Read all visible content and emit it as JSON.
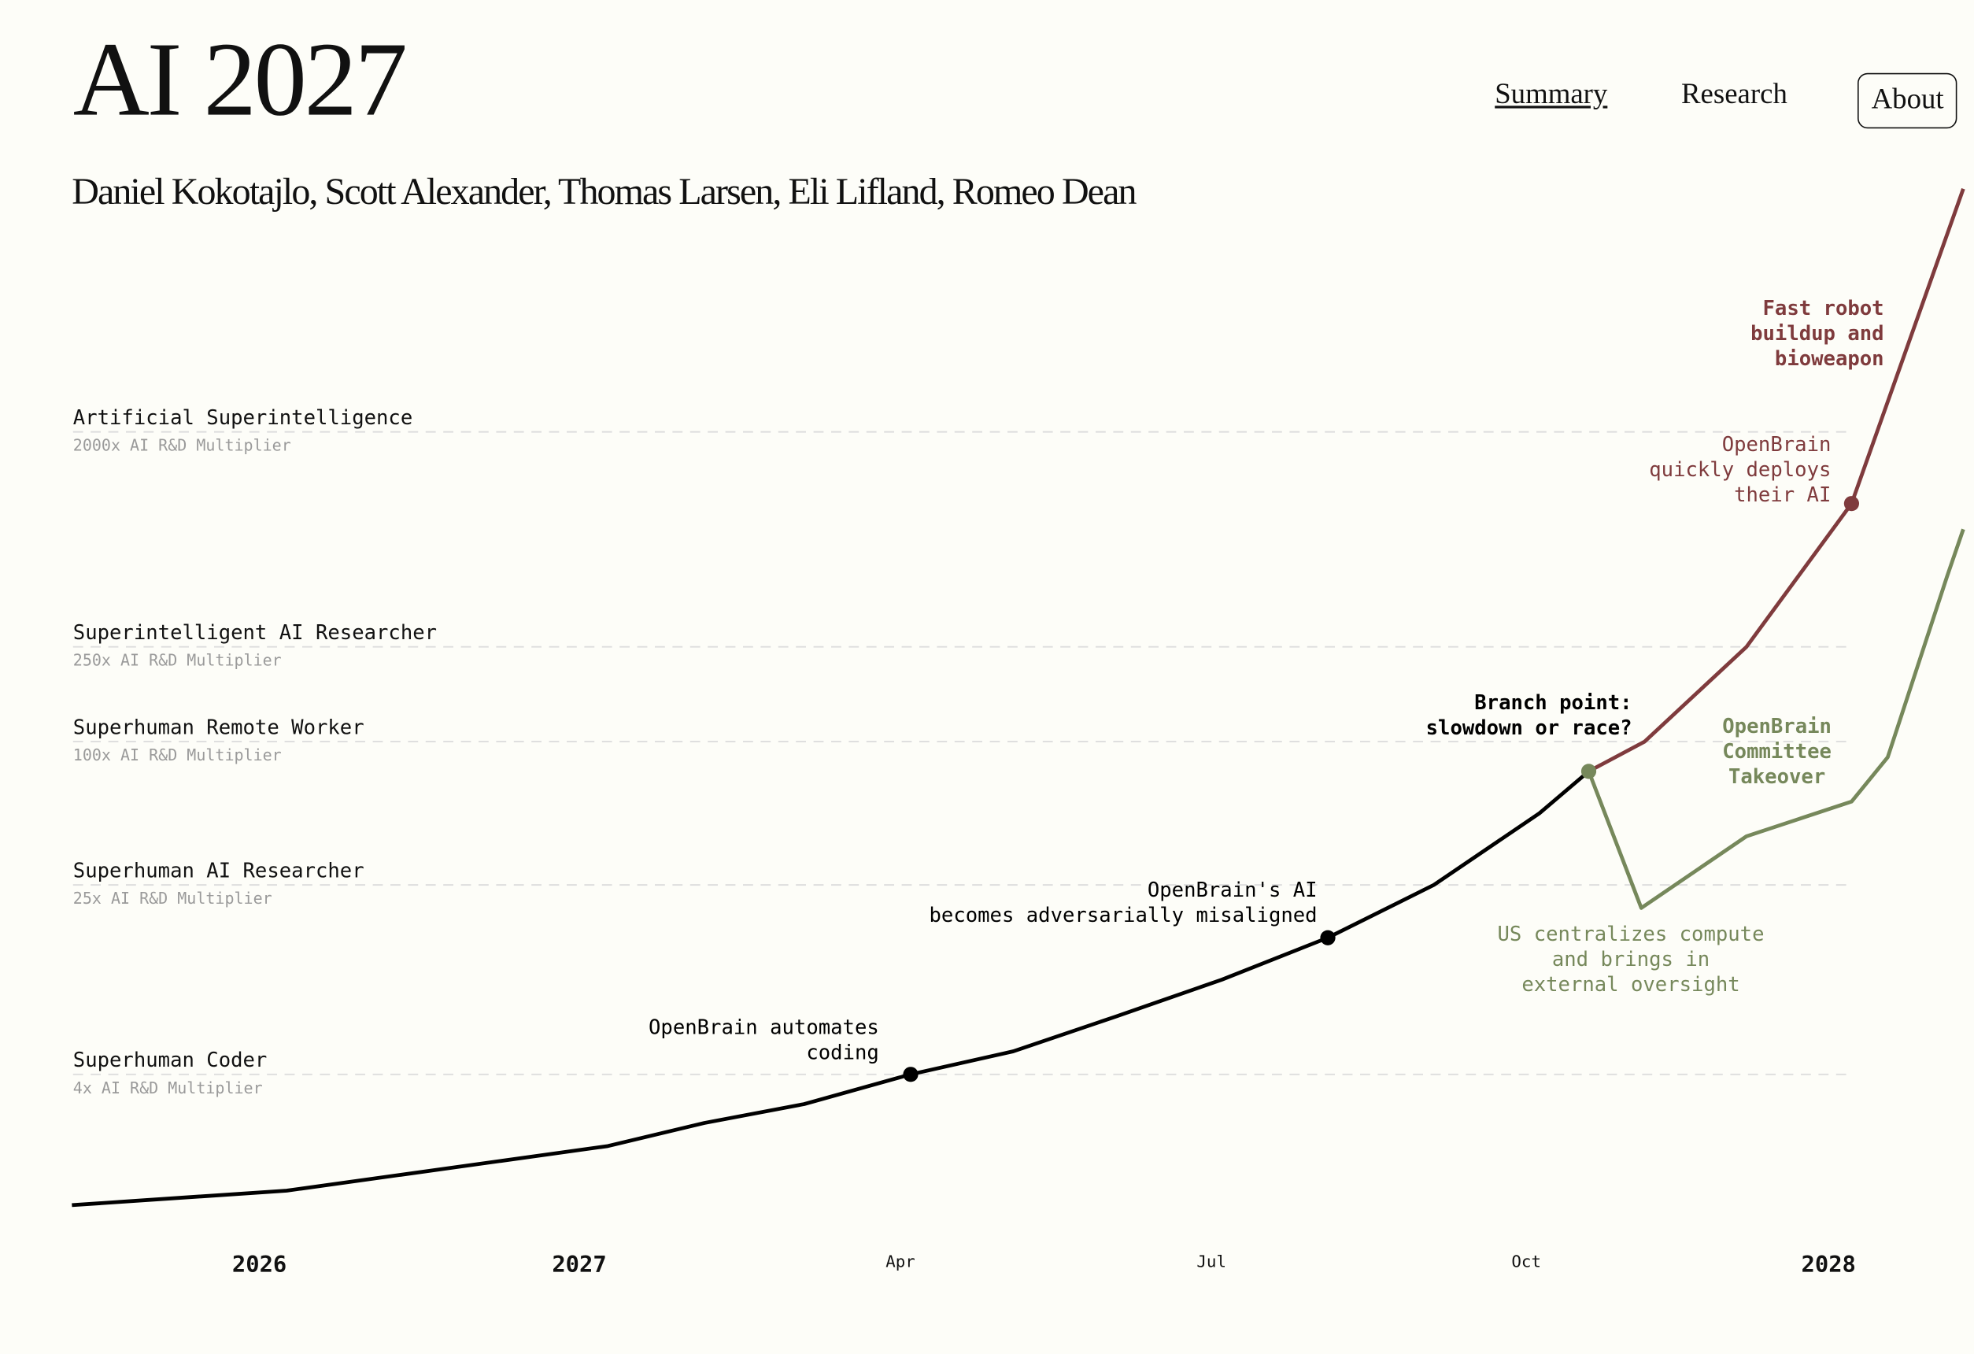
{
  "header": {
    "title": "AI 2027",
    "authors": "Daniel Kokotajlo, Scott Alexander, Thomas Larsen, Eli Lifland, Romeo Dean",
    "nav": [
      {
        "label": "Summary",
        "active": true
      },
      {
        "label": "Research"
      },
      {
        "label": "About"
      }
    ]
  },
  "colors": {
    "background": "#fdfdf8",
    "main": "#000000",
    "race": "#7f3b3d",
    "slowdown": "#76885b",
    "gridline": "#dddddd",
    "sublabel": "#9a9a9a"
  },
  "chart_data": {
    "type": "line",
    "y_scale": "log",
    "y_unit": "AI R&D Multiplier",
    "grid": "dashed horizontal lines at milestone levels",
    "x_ticks": [
      {
        "label": "2026",
        "date": "2026-01-01",
        "major": true
      },
      {
        "label": "2027",
        "date": "2027-01-01",
        "major": true
      },
      {
        "label": "Apr",
        "date": "2027-04-01",
        "major": false
      },
      {
        "label": "Jul",
        "date": "2027-07-01",
        "major": false
      },
      {
        "label": "Oct",
        "date": "2027-10-01",
        "major": false
      },
      {
        "label": "2028",
        "date": "2028-01-01",
        "major": true
      }
    ],
    "levels": [
      {
        "name": "Artificial Superintelligence",
        "sublabel": "2000x AI R&D Multiplier",
        "value": 2000
      },
      {
        "name": "Superintelligent AI Researcher",
        "sublabel": "250x AI R&D Multiplier",
        "value": 250
      },
      {
        "name": "Superhuman Remote Worker",
        "sublabel": "100x AI R&D Multiplier",
        "value": 100
      },
      {
        "name": "Superhuman AI Researcher",
        "sublabel": "25x AI R&D Multiplier",
        "value": 25
      },
      {
        "name": "Superhuman Coder",
        "sublabel": "4x AI R&D Multiplier",
        "value": 4
      }
    ],
    "series": [
      {
        "key": "main",
        "color": "#000000",
        "points": [
          [
            "2025-06-01",
            1.13
          ],
          [
            "2026-02-01",
            1.3
          ],
          [
            "2027-01-09",
            2.0
          ],
          [
            "2027-02-05",
            2.5
          ],
          [
            "2027-03-05",
            3.0
          ],
          [
            "2027-04-04",
            4
          ],
          [
            "2027-05-04",
            5.0
          ],
          [
            "2027-06-03",
            7.0
          ],
          [
            "2027-07-04",
            10
          ],
          [
            "2027-08-04",
            15
          ],
          [
            "2027-09-04",
            25
          ],
          [
            "2027-10-05",
            50
          ],
          [
            "2027-10-20",
            75
          ]
        ]
      },
      {
        "key": "race",
        "color": "#7f3b3d",
        "points": [
          [
            "2027-10-20",
            75
          ],
          [
            "2027-11-06",
            100
          ],
          [
            "2027-12-07",
            250
          ],
          [
            "2028-01-08",
            1000
          ],
          [
            "2028-02-11",
            21000
          ]
        ]
      },
      {
        "key": "slowdown",
        "color": "#76885b",
        "points": [
          [
            "2027-10-20",
            75
          ],
          [
            "2027-11-05",
            20
          ],
          [
            "2027-12-07",
            40
          ],
          [
            "2028-01-08",
            56
          ],
          [
            "2028-01-19",
            86
          ],
          [
            "2028-02-06",
            490
          ],
          [
            "2028-02-11",
            780
          ]
        ]
      }
    ],
    "markers": [
      {
        "date": "2027-04-04",
        "value": 4,
        "color": "#000000"
      },
      {
        "date": "2027-08-04",
        "value": 15,
        "color": "#000000"
      },
      {
        "date": "2027-10-20",
        "value": 75,
        "color": "#76885b"
      },
      {
        "date": "2028-01-08",
        "value": 1000,
        "color": "#7f3b3d"
      }
    ],
    "annotations": [
      {
        "lines": [
          "OpenBrain automates",
          "coding"
        ],
        "color": "#000000",
        "bold": false
      },
      {
        "lines": [
          "OpenBrain's AI",
          "becomes adversarially misaligned"
        ],
        "color": "#000000",
        "bold": false
      },
      {
        "lines": [
          "Branch point:",
          "slowdown or race?"
        ],
        "color": "#000000",
        "bold": true
      },
      {
        "lines": [
          "OpenBrain",
          "quickly deploys",
          "their AI"
        ],
        "color": "#7f3b3d",
        "bold": false
      },
      {
        "lines": [
          "Fast robot",
          "buildup and",
          "bioweapon"
        ],
        "color": "#7f3b3d",
        "bold": true
      },
      {
        "lines": [
          "US centralizes compute",
          "and brings in",
          "external oversight"
        ],
        "color": "#76885b",
        "bold": false
      },
      {
        "lines": [
          "OpenBrain",
          "Committee",
          "Takeover"
        ],
        "color": "#76885b",
        "bold": true
      }
    ]
  }
}
